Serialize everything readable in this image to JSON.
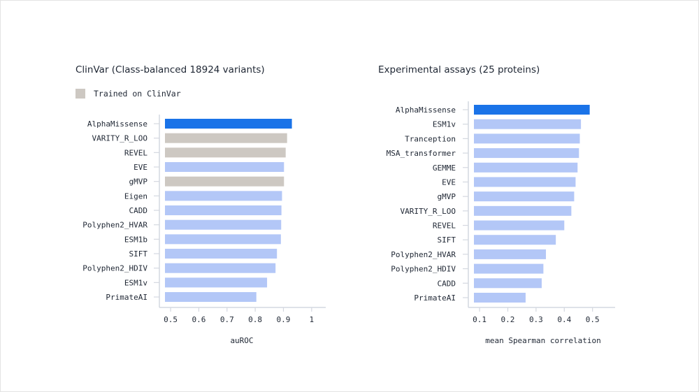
{
  "colors": {
    "highlight": "#1a73e8",
    "trained": "#cdc8c2",
    "default": "#b3c7f7",
    "axis": "#d4d8e0",
    "text": "#1e2633"
  },
  "legend": {
    "label": "Trained on ClinVar"
  },
  "chart_data": [
    {
      "type": "bar",
      "orientation": "horizontal",
      "title": "ClinVar (Class-balanced 18924 variants)",
      "xlabel": "auROC",
      "xlim": [
        0.48,
        1.05
      ],
      "xticks": [
        0.5,
        0.6,
        0.7,
        0.8,
        0.9,
        1
      ],
      "xtick_labels": [
        "0.5",
        "0.6",
        "0.7",
        "0.8",
        "0.9",
        "1"
      ],
      "categories": [
        "AlphaMissense",
        "VARITY_R_LOO",
        "REVEL",
        "EVE",
        "gMVP",
        "Eigen",
        "CADD",
        "Polyphen2_HVAR",
        "ESM1b",
        "SIFT",
        "Polyphen2_HDIV",
        "ESM1v",
        "PrimateAI"
      ],
      "values": [
        0.93,
        0.913,
        0.908,
        0.902,
        0.902,
        0.895,
        0.893,
        0.892,
        0.891,
        0.877,
        0.872,
        0.842,
        0.804
      ],
      "bar_groups": [
        "highlight",
        "trained",
        "trained",
        "default",
        "trained",
        "default",
        "default",
        "default",
        "default",
        "default",
        "default",
        "default",
        "default"
      ],
      "legend": "top-left"
    },
    {
      "type": "bar",
      "orientation": "horizontal",
      "title": "Experimental assays (25 proteins)",
      "xlabel": "mean Spearman correlation",
      "xlim": [
        0.08,
        0.58
      ],
      "xticks": [
        0.1,
        0.2,
        0.3,
        0.4,
        0.5
      ],
      "xtick_labels": [
        "0.1",
        "0.2",
        "0.3",
        "0.4",
        "0.5"
      ],
      "categories": [
        "AlphaMissense",
        "ESM1v",
        "Tranception",
        "MSA_transformer",
        "GEMME",
        "EVE",
        "gMVP",
        "VARITY_R_LOO",
        "REVEL",
        "SIFT",
        "Polyphen2_HVAR",
        "Polyphen2_HDIV",
        "CADD",
        "PrimateAI"
      ],
      "values": [
        0.49,
        0.459,
        0.455,
        0.452,
        0.447,
        0.44,
        0.435,
        0.425,
        0.4,
        0.37,
        0.335,
        0.326,
        0.32,
        0.263
      ],
      "bar_groups": [
        "highlight",
        "default",
        "default",
        "default",
        "default",
        "default",
        "default",
        "default",
        "default",
        "default",
        "default",
        "default",
        "default",
        "default"
      ]
    }
  ]
}
